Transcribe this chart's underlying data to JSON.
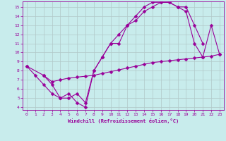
{
  "xlabel": "Windchill (Refroidissement éolien,°C)",
  "bg_color": "#c8ecec",
  "line_color": "#990099",
  "xlim": [
    -0.5,
    23.5
  ],
  "ylim": [
    3.7,
    15.6
  ],
  "xticks": [
    0,
    1,
    2,
    3,
    4,
    5,
    6,
    7,
    8,
    9,
    10,
    11,
    12,
    13,
    14,
    15,
    16,
    17,
    18,
    19,
    20,
    21,
    22,
    23
  ],
  "yticks": [
    4,
    5,
    6,
    7,
    8,
    9,
    10,
    11,
    12,
    13,
    14,
    15
  ],
  "line1_x": [
    0,
    1,
    2,
    3,
    4,
    5,
    6,
    7,
    8,
    9,
    10,
    11,
    12,
    13,
    14,
    15,
    16,
    17,
    18,
    19,
    20,
    21
  ],
  "line1_y": [
    8.5,
    7.5,
    6.5,
    5.5,
    5.0,
    5.5,
    4.5,
    4.0,
    8.0,
    9.5,
    11.0,
    11.0,
    13.0,
    13.5,
    14.5,
    15.0,
    15.5,
    15.5,
    15.0,
    15.0,
    13.0,
    11.0
  ],
  "line2_x": [
    2,
    3,
    4,
    5,
    6,
    7,
    8,
    9,
    10,
    11,
    12,
    13,
    14,
    15,
    16,
    17,
    18,
    19,
    20,
    21,
    22,
    23
  ],
  "line2_y": [
    7.5,
    6.5,
    5.0,
    5.0,
    5.5,
    4.5,
    8.0,
    9.5,
    11.0,
    12.0,
    13.0,
    14.0,
    15.0,
    15.5,
    15.5,
    15.5,
    15.0,
    14.5,
    11.0,
    9.5,
    13.0,
    9.8
  ],
  "line3_x": [
    0,
    2,
    3,
    4,
    5,
    6,
    7,
    8,
    9,
    10,
    11,
    12,
    13,
    14,
    15,
    16,
    17,
    18,
    19,
    20,
    21,
    22,
    23
  ],
  "line3_y": [
    8.5,
    7.5,
    6.8,
    7.0,
    7.2,
    7.3,
    7.4,
    7.5,
    7.7,
    7.9,
    8.1,
    8.3,
    8.5,
    8.7,
    8.9,
    9.0,
    9.1,
    9.2,
    9.3,
    9.4,
    9.5,
    9.6,
    9.8
  ],
  "grid_color": "#b0c8c8",
  "marker": "D",
  "marker_size": 2.5,
  "lw": 0.8
}
